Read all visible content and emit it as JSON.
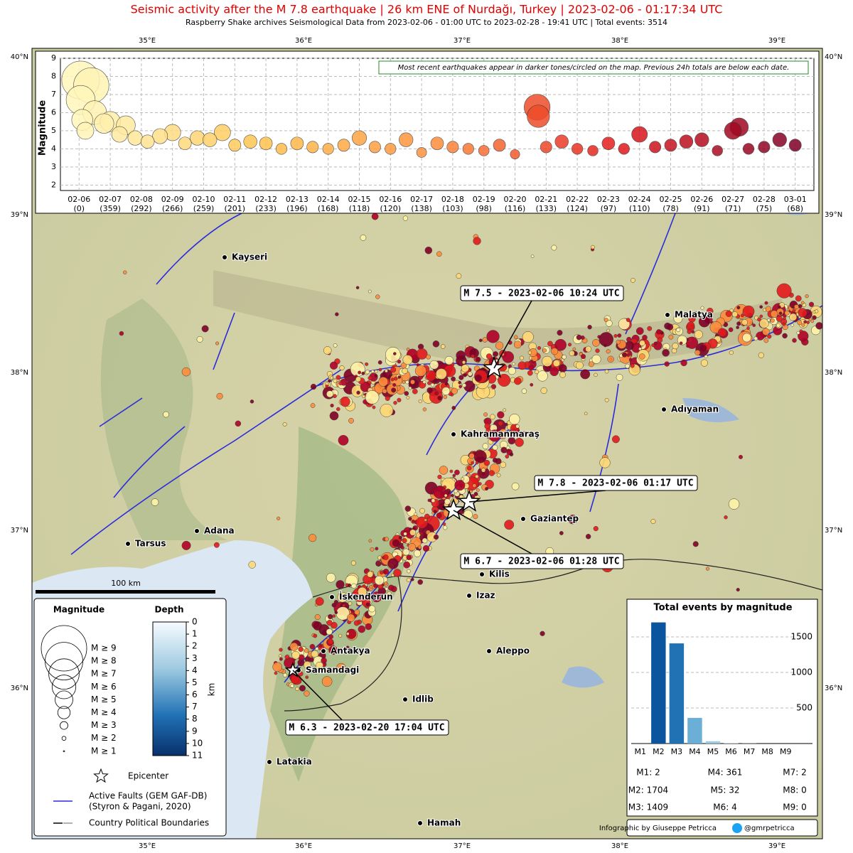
{
  "header": {
    "title": "Seismic activity after the M 7.8 earthquake | 26 km ENE of Nurdağı, Turkey | 2023-02-06 - 01:17:34 UTC",
    "subtitle": "Raspberry Shake archives Seismological Data from 2023-02-06 - 01:00 UTC to 2023-02-28 - 19:41 UTC | Total events: 3514"
  },
  "map": {
    "lon_labels": [
      "35°E",
      "36°E",
      "37°E",
      "38°E",
      "39°E"
    ],
    "lat_labels": [
      "40°N",
      "39°N",
      "38°N",
      "37°N",
      "36°N"
    ],
    "cities": [
      "Kayseri",
      "Malatya",
      "Adıyaman",
      "Kahramanmaraş",
      "Gaziantep",
      "Adana",
      "Tarsus",
      "Kilis",
      "Izaz",
      "İskenderun",
      "Antakya",
      "Samandagi",
      "Aleppo",
      "Idlib",
      "Latakia",
      "Hamah"
    ],
    "annotations": [
      "M 7.5 - 2023-02-06 10:24 UTC",
      "M 7.8 - 2023-02-06 01:17 UTC",
      "M 6.7 - 2023-02-06 01:28 UTC",
      "M 6.3 - 2023-02-20 17:04 UTC"
    ],
    "scale_bar": "100 km"
  },
  "legend": {
    "magnitude_title": "Magnitude",
    "depth_title": "Depth",
    "magnitude_entries": [
      "M ≥ 9",
      "M ≥ 8",
      "M ≥ 7",
      "M ≥ 6",
      "M ≥ 5",
      "M ≥ 4",
      "M ≥ 3",
      "M ≥ 2",
      "M ≥ 1"
    ],
    "depth_ticks": [
      0,
      1,
      2,
      3,
      4,
      5,
      6,
      7,
      8,
      9,
      10,
      11
    ],
    "depth_lim": [
      0,
      11
    ],
    "depth_unit": "km",
    "epicenter": "Epicenter",
    "faults": [
      "Active Faults (GEM GAF-DB)",
      "(Styron & Pagani, 2020)"
    ],
    "boundaries": "Country Political Boundaries"
  },
  "credit": {
    "text": "Infographic by Giuseppe Petricca",
    "handle": "@gmrpetricca"
  },
  "chart_data": [
    {
      "type": "scatter",
      "ylabel": "Magnitude",
      "note": "Most recent earthquakes appear in darker tones/circled on the map. Previous 24h totals are below each date.",
      "x": [
        0.05,
        0.05,
        0.1,
        0.2,
        0.39,
        0.5,
        0.8,
        1,
        1.3,
        1.5,
        1.8,
        2.2,
        2.6,
        3,
        3.4,
        3.8,
        4.2,
        4.6,
        5,
        5.5,
        6,
        6.5,
        7,
        7.5,
        8,
        8.5,
        9,
        9.5,
        10,
        10.5,
        11,
        11.5,
        12,
        12.5,
        13,
        13.5,
        14,
        14.71,
        14.75,
        15,
        15.5,
        16,
        16.5,
        17,
        17.5,
        18,
        18.5,
        19,
        19.5,
        20,
        20.5,
        21,
        21.2,
        21.5,
        22,
        22.5,
        23
      ],
      "y": [
        7.8,
        6.7,
        5.6,
        5,
        7.5,
        6,
        5.4,
        5.5,
        4.8,
        5.3,
        4.6,
        4.4,
        4.7,
        4.9,
        4.3,
        4.6,
        4.5,
        4.9,
        4.2,
        4.4,
        4.3,
        4.0,
        4.3,
        4.1,
        4.0,
        4.2,
        4.6,
        4.1,
        4.0,
        4.5,
        3.8,
        4.3,
        4.1,
        4.0,
        3.9,
        4.2,
        3.7,
        6.3,
        5.8,
        4.1,
        4.4,
        4.0,
        3.9,
        4.3,
        4.0,
        4.8,
        4.1,
        4.2,
        4.4,
        4.5,
        3.9,
        5.0,
        5.2,
        4.0,
        4.1,
        4.5,
        4.2
      ],
      "colorscale": [
        "#fff7bc",
        "#fec44f",
        "#fd8d3c",
        "#e31a1c",
        "#800026"
      ],
      "xlim": [
        -0.6,
        23.6
      ],
      "xticks": [
        {
          "value": 0,
          "label": "02-06"
        },
        {
          "value": 1,
          "label": "02-07"
        },
        {
          "value": 2,
          "label": "02-08"
        },
        {
          "value": 3,
          "label": "02-09"
        },
        {
          "value": 4,
          "label": "02-10"
        },
        {
          "value": 5,
          "label": "02-11"
        },
        {
          "value": 6,
          "label": "02-12"
        },
        {
          "value": 7,
          "label": "02-13"
        },
        {
          "value": 8,
          "label": "02-14"
        },
        {
          "value": 9,
          "label": "02-15"
        },
        {
          "value": 10,
          "label": "02-16"
        },
        {
          "value": 11,
          "label": "02-17"
        },
        {
          "value": 12,
          "label": "02-18"
        },
        {
          "value": 13,
          "label": "02-19"
        },
        {
          "value": 14,
          "label": "02-20"
        },
        {
          "value": 15,
          "label": "02-21"
        },
        {
          "value": 16,
          "label": "02-22"
        },
        {
          "value": 17,
          "label": "02-23"
        },
        {
          "value": 18,
          "label": "02-24"
        },
        {
          "value": 19,
          "label": "02-25"
        },
        {
          "value": 20,
          "label": "02-26"
        },
        {
          "value": 21,
          "label": "02-27"
        },
        {
          "value": 22,
          "label": "02-28"
        },
        {
          "value": 23,
          "label": "03-01"
        }
      ],
      "daily_totals": [
        "(0)",
        "(359)",
        "(292)",
        "(266)",
        "(259)",
        "(201)",
        "(233)",
        "(196)",
        "(168)",
        "(118)",
        "(120)",
        "(138)",
        "(103)",
        "(98)",
        "(116)",
        "(133)",
        "(124)",
        "(97)",
        "(110)",
        "(78)",
        "(91)",
        "(71)",
        "(75)",
        "(68)"
      ],
      "ylim": [
        1.7,
        9
      ],
      "yticks": [
        2,
        3,
        4,
        5,
        6,
        7,
        8,
        9
      ],
      "grid": true
    },
    {
      "type": "bar",
      "title": "Total events by magnitude",
      "categories": [
        "M1",
        "M2",
        "M3",
        "M4",
        "M5",
        "M6",
        "M7",
        "M8",
        "M9"
      ],
      "values": [
        2,
        1704,
        1409,
        361,
        32,
        4,
        2,
        0,
        0
      ],
      "value_labels": [
        "M1: 2",
        "M2: 1704",
        "M3: 1409",
        "M4: 361",
        "M5: 32",
        "M6: 4",
        "M7: 2",
        "M8: 0",
        "M9: 0"
      ],
      "colors": [
        "#08306b",
        "#0b559f",
        "#2171b5",
        "#6baed6",
        "#9ecae1",
        "#c6dbef",
        "#deebf7",
        "#eef5fc",
        "#f7fbff"
      ],
      "ylim": [
        0,
        1780
      ],
      "yticks": [
        500,
        1000,
        1500
      ],
      "grid": true
    }
  ]
}
